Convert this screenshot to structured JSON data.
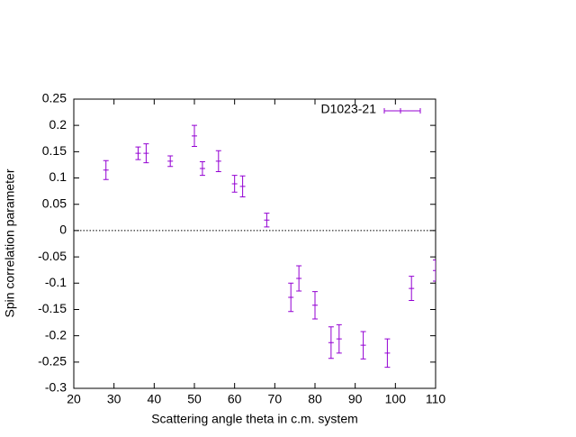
{
  "chart_data": {
    "type": "errorbar",
    "xlabel": "Scattering angle theta in c.m. system",
    "ylabel": "Spin correlation parameter",
    "x": [
      28,
      36,
      38,
      44,
      50,
      52,
      56,
      60,
      62,
      68,
      74,
      76,
      80,
      84,
      86,
      92,
      98,
      104,
      110
    ],
    "series": [
      {
        "name": "D1023-21",
        "color": "#9400d3",
        "values": [
          0.115,
          0.147,
          0.147,
          0.132,
          0.18,
          0.118,
          0.132,
          0.089,
          0.084,
          0.02,
          -0.127,
          -0.091,
          -0.142,
          -0.213,
          -0.206,
          -0.218,
          -0.233,
          -0.11,
          -0.076
        ],
        "errors": [
          0.018,
          0.012,
          0.018,
          0.01,
          0.02,
          0.013,
          0.02,
          0.016,
          0.02,
          0.013,
          0.027,
          0.024,
          0.026,
          0.03,
          0.027,
          0.026,
          0.027,
          0.023,
          0.02
        ]
      }
    ],
    "xlim": [
      20,
      110
    ],
    "xticks": [
      20,
      30,
      40,
      50,
      60,
      70,
      80,
      90,
      100,
      110
    ],
    "ylim": [
      -0.3,
      0.25
    ],
    "yticks": [
      -0.3,
      -0.25,
      -0.2,
      -0.15,
      -0.1,
      -0.05,
      0,
      0.05,
      0.1,
      0.15,
      0.2,
      0.25
    ],
    "zero_line": true,
    "legend": "top-right"
  }
}
